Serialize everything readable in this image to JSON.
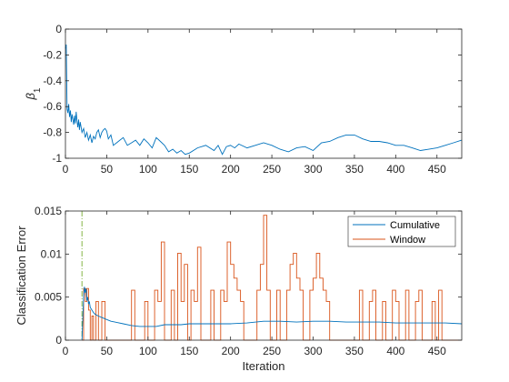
{
  "colors": {
    "cumulative": "#0072BD",
    "window": "#D95319",
    "marker": "#77AC30",
    "axis": "#262626"
  },
  "chart_data": [
    {
      "type": "line",
      "title": "",
      "xlabel": "",
      "ylabel": "β1",
      "ylabel_base": "β",
      "ylabel_sub": "1",
      "xlim": [
        0,
        480
      ],
      "ylim": [
        -1,
        0
      ],
      "xticks": [
        0,
        50,
        100,
        150,
        200,
        250,
        300,
        350,
        400,
        450
      ],
      "yticks": [
        -1,
        -0.8,
        -0.6,
        -0.4,
        -0.2,
        0
      ],
      "ytick_labels": [
        "-1",
        "-0.8",
        "-0.6",
        "-0.4",
        "-0.2",
        "0"
      ],
      "grid": false,
      "series": [
        {
          "x": [
            0,
            1,
            2,
            3,
            4,
            5,
            6,
            7,
            8,
            9,
            10,
            11,
            12,
            13,
            14,
            15,
            16,
            17,
            18,
            20,
            22,
            24,
            26,
            28,
            30,
            32,
            34,
            36,
            38,
            40,
            42,
            44,
            46,
            48,
            50,
            52,
            55,
            58,
            62,
            66,
            70,
            75,
            80,
            85,
            90,
            95,
            100,
            105,
            110,
            115,
            120,
            125,
            130,
            135,
            140,
            145,
            150,
            160,
            170,
            180,
            185,
            190,
            195,
            200,
            205,
            210,
            220,
            230,
            240,
            250,
            260,
            270,
            280,
            290,
            300,
            310,
            320,
            330,
            340,
            350,
            360,
            370,
            380,
            390,
            400,
            410,
            420,
            430,
            440,
            450,
            460,
            470,
            480
          ],
          "y": [
            -0.15,
            -0.12,
            -0.62,
            -0.65,
            -0.58,
            -0.68,
            -0.63,
            -0.72,
            -0.66,
            -0.7,
            -0.74,
            -0.67,
            -0.73,
            -0.64,
            -0.71,
            -0.76,
            -0.7,
            -0.78,
            -0.72,
            -0.8,
            -0.77,
            -0.84,
            -0.8,
            -0.86,
            -0.82,
            -0.88,
            -0.83,
            -0.85,
            -0.8,
            -0.78,
            -0.84,
            -0.8,
            -0.78,
            -0.77,
            -0.79,
            -0.85,
            -0.82,
            -0.9,
            -0.88,
            -0.86,
            -0.84,
            -0.9,
            -0.88,
            -0.86,
            -0.9,
            -0.85,
            -0.88,
            -0.92,
            -0.84,
            -0.87,
            -0.9,
            -0.95,
            -0.93,
            -0.96,
            -0.94,
            -0.97,
            -0.96,
            -0.92,
            -0.9,
            -0.94,
            -0.9,
            -0.97,
            -0.91,
            -0.9,
            -0.92,
            -0.89,
            -0.92,
            -0.9,
            -0.88,
            -0.9,
            -0.93,
            -0.95,
            -0.92,
            -0.91,
            -0.94,
            -0.88,
            -0.87,
            -0.84,
            -0.82,
            -0.82,
            -0.85,
            -0.87,
            -0.87,
            -0.88,
            -0.9,
            -0.9,
            -0.92,
            -0.94,
            -0.93,
            -0.92,
            -0.9,
            -0.88,
            -0.86
          ]
        }
      ]
    },
    {
      "type": "line",
      "title": "",
      "xlabel": "Iteration",
      "ylabel": "Classification Error",
      "xlim": [
        0,
        480
      ],
      "ylim": [
        0,
        0.015
      ],
      "xticks": [
        0,
        50,
        100,
        150,
        200,
        250,
        300,
        350,
        400,
        450
      ],
      "yticks": [
        0,
        0.005,
        0.01,
        0.015
      ],
      "ytick_labels": [
        "0",
        "0.005",
        "0.01",
        "0.015"
      ],
      "grid": false,
      "legend": {
        "location": "top-right"
      },
      "vline_x": 20,
      "series": [
        {
          "name": "Cumulative",
          "x": [
            20,
            21,
            22,
            23,
            24,
            25,
            26,
            27,
            28,
            29,
            30,
            32,
            34,
            36,
            38,
            40,
            45,
            50,
            55,
            60,
            70,
            80,
            90,
            100,
            110,
            120,
            130,
            140,
            150,
            160,
            180,
            200,
            220,
            240,
            260,
            280,
            300,
            320,
            340,
            360,
            380,
            400,
            420,
            440,
            460,
            480
          ],
          "y": [
            0,
            0.0025,
            0.005,
            0.0062,
            0.0055,
            0.006,
            0.0046,
            0.005,
            0.0042,
            0.0045,
            0.0038,
            0.0035,
            0.0032,
            0.003,
            0.0029,
            0.0028,
            0.0026,
            0.0024,
            0.0022,
            0.0021,
            0.0019,
            0.0017,
            0.0016,
            0.0016,
            0.0016,
            0.0018,
            0.0018,
            0.0018,
            0.0019,
            0.0019,
            0.0019,
            0.0019,
            0.002,
            0.0022,
            0.0022,
            0.0021,
            0.0022,
            0.0022,
            0.0021,
            0.0021,
            0.0021,
            0.002,
            0.002,
            0.002,
            0.002,
            0.0019
          ]
        },
        {
          "name": "Window",
          "steps": [
            [
              20,
              0
            ],
            [
              22,
              0.006
            ],
            [
              24,
              0.0045
            ],
            [
              26,
              0.006
            ],
            [
              28,
              0.0035
            ],
            [
              30,
              0
            ],
            [
              32,
              0.0028
            ],
            [
              34,
              0
            ],
            [
              37,
              0.0045
            ],
            [
              40,
              0
            ],
            [
              44,
              0.0045
            ],
            [
              48,
              0
            ],
            [
              80,
              0.0058
            ],
            [
              84,
              0
            ],
            [
              96,
              0.0045
            ],
            [
              100,
              0
            ],
            [
              108,
              0.0058
            ],
            [
              112,
              0.0045
            ],
            [
              116,
              0.0114
            ],
            [
              120,
              0
            ],
            [
              128,
              0.0058
            ],
            [
              132,
              0
            ],
            [
              136,
              0.0101
            ],
            [
              140,
              0.0045
            ],
            [
              144,
              0.0088
            ],
            [
              148,
              0
            ],
            [
              152,
              0.0058
            ],
            [
              156,
              0.0045
            ],
            [
              160,
              0.0108
            ],
            [
              164,
              0
            ],
            [
              176,
              0.0058
            ],
            [
              180,
              0
            ],
            [
              188,
              0.0058
            ],
            [
              192,
              0.0045
            ],
            [
              196,
              0.0114
            ],
            [
              200,
              0.0088
            ],
            [
              204,
              0.0072
            ],
            [
              208,
              0.0058
            ],
            [
              212,
              0.0045
            ],
            [
              216,
              0
            ],
            [
              232,
              0.0058
            ],
            [
              236,
              0.0088
            ],
            [
              240,
              0.0145
            ],
            [
              244,
              0.0058
            ],
            [
              248,
              0
            ],
            [
              256,
              0.0058
            ],
            [
              260,
              0
            ],
            [
              268,
              0.0058
            ],
            [
              272,
              0.0088
            ],
            [
              276,
              0.0101
            ],
            [
              280,
              0.0072
            ],
            [
              284,
              0.0058
            ],
            [
              288,
              0
            ],
            [
              296,
              0.0058
            ],
            [
              300,
              0.0072
            ],
            [
              304,
              0.0101
            ],
            [
              308,
              0.0072
            ],
            [
              312,
              0.0058
            ],
            [
              316,
              0.0045
            ],
            [
              320,
              0
            ],
            [
              356,
              0.0058
            ],
            [
              360,
              0
            ],
            [
              368,
              0.0045
            ],
            [
              372,
              0.0058
            ],
            [
              376,
              0
            ],
            [
              384,
              0.0045
            ],
            [
              388,
              0
            ],
            [
              396,
              0.0058
            ],
            [
              400,
              0.0045
            ],
            [
              404,
              0
            ],
            [
              412,
              0.0058
            ],
            [
              416,
              0
            ],
            [
              424,
              0.0045
            ],
            [
              428,
              0.0058
            ],
            [
              432,
              0
            ],
            [
              444,
              0.0045
            ],
            [
              448,
              0
            ],
            [
              452,
              0.0058
            ],
            [
              456,
              0
            ],
            [
              480,
              0
            ]
          ]
        }
      ]
    }
  ]
}
